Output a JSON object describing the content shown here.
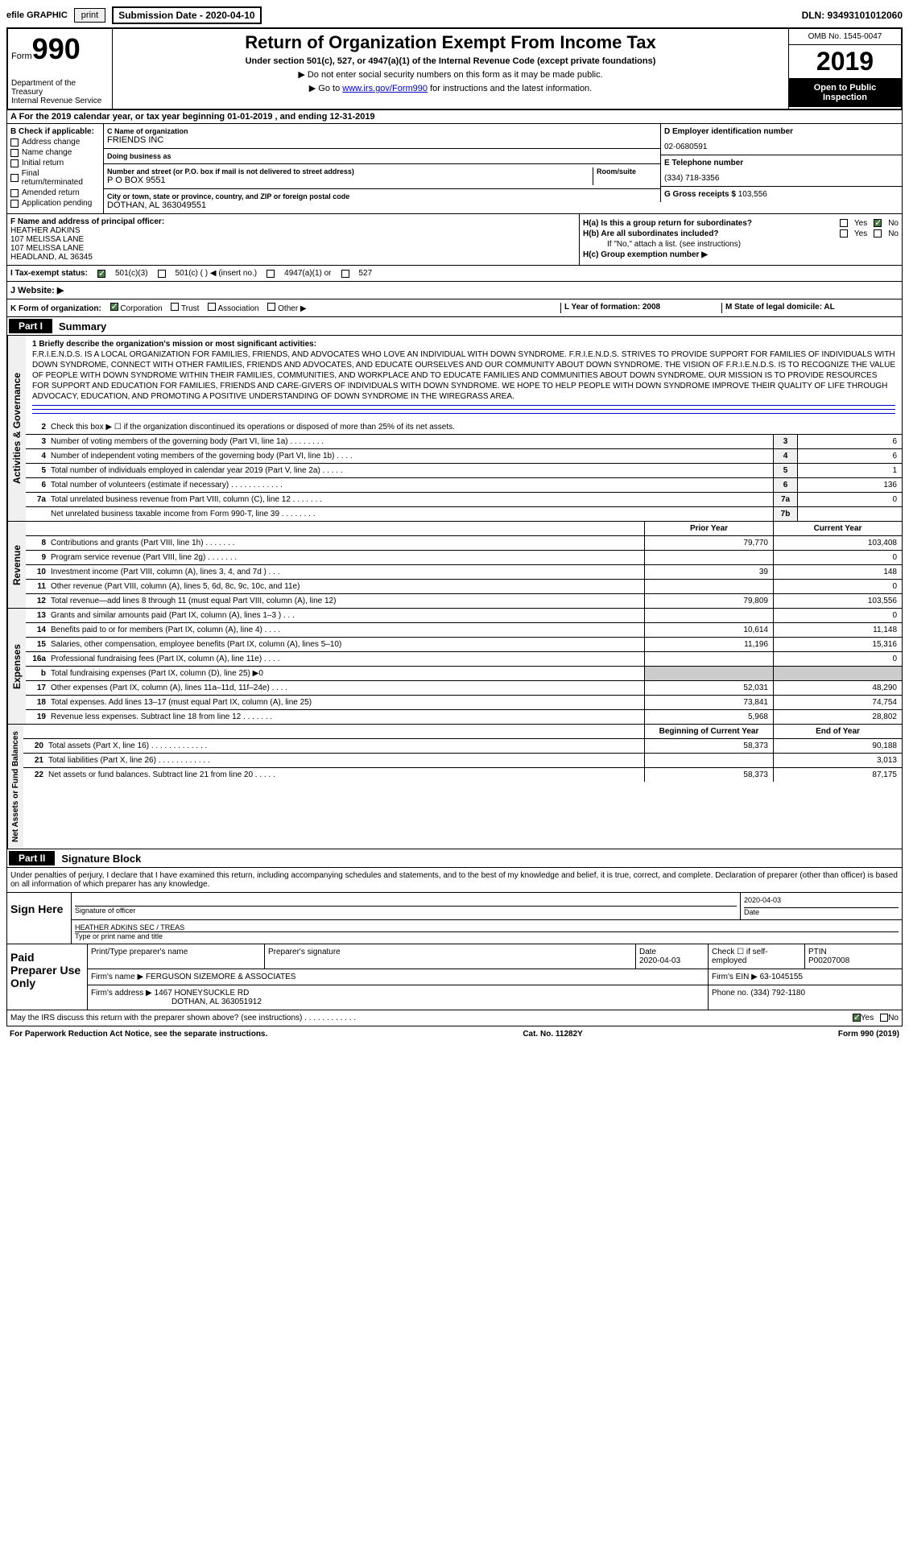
{
  "topbar": {
    "efile": "efile GRAPHIC",
    "print": "print",
    "submission": "Submission Date - 2020-04-10",
    "dln": "DLN: 93493101012060"
  },
  "header": {
    "form_prefix": "Form",
    "form_num": "990",
    "dept": "Department of the Treasury\nInternal Revenue Service",
    "title": "Return of Organization Exempt From Income Tax",
    "subtitle": "Under section 501(c), 527, or 4947(a)(1) of the Internal Revenue Code (except private foundations)",
    "instr1": "▶ Do not enter social security numbers on this form as it may be made public.",
    "instr2_prefix": "▶ Go to ",
    "instr2_link": "www.irs.gov/Form990",
    "instr2_suffix": " for instructions and the latest information.",
    "omb": "OMB No. 1545-0047",
    "year": "2019",
    "public": "Open to Public Inspection"
  },
  "row_a": "A For the 2019 calendar year, or tax year beginning 01-01-2019   , and ending 12-31-2019",
  "block_b": {
    "label": "B Check if applicable:",
    "items": [
      "Address change",
      "Name change",
      "Initial return",
      "Final return/terminated",
      "Amended return",
      "Application pending"
    ]
  },
  "block_c": {
    "name_label": "C Name of organization",
    "name": "FRIENDS INC",
    "dba_label": "Doing business as",
    "dba": "",
    "addr_label": "Number and street (or P.O. box if mail is not delivered to street address)",
    "room_label": "Room/suite",
    "addr": "P O BOX 9551",
    "city_label": "City or town, state or province, country, and ZIP or foreign postal code",
    "city": "DOTHAN, AL  363049551"
  },
  "block_d": {
    "label": "D Employer identification number",
    "value": "02-0680591"
  },
  "block_e": {
    "label": "E Telephone number",
    "value": "(334) 718-3356"
  },
  "block_g": {
    "label": "G Gross receipts $",
    "value": "103,556"
  },
  "block_f": {
    "label": "F Name and address of principal officer:",
    "name": "HEATHER ADKINS",
    "addr1": "107 MELISSA LANE",
    "addr2": "107 MELISSA LANE",
    "city": "HEADLAND, AL  36345"
  },
  "block_h": {
    "ha": "H(a)  Is this a group return for subordinates?",
    "hb": "H(b)  Are all subordinates included?",
    "hb_note": "If \"No,\" attach a list. (see instructions)",
    "hc": "H(c)  Group exemption number ▶",
    "yes": "Yes",
    "no": "No"
  },
  "row_i": {
    "label": "I  Tax-exempt status:",
    "opt1": "501(c)(3)",
    "opt2": "501(c) (  ) ◀ (insert no.)",
    "opt3": "4947(a)(1) or",
    "opt4": "527"
  },
  "row_j": "J  Website: ▶",
  "row_k": {
    "label": "K Form of organization:",
    "opts": [
      "Corporation",
      "Trust",
      "Association",
      "Other ▶"
    ],
    "l": "L Year of formation: 2008",
    "m": "M State of legal domicile: AL"
  },
  "part1": {
    "header": "Part I",
    "title": "Summary"
  },
  "governance": {
    "label": "Activities & Governance",
    "mission_label": "1  Briefly describe the organization's mission or most significant activities:",
    "mission": "F.R.I.E.N.D.S. IS A LOCAL ORGANIZATION FOR FAMILIES, FRIENDS, AND ADVOCATES WHO LOVE AN INDIVIDUAL WITH DOWN SYNDROME. F.R.I.E.N.D.S. STRIVES TO PROVIDE SUPPORT FOR FAMILIES OF INDIVIDUALS WITH DOWN SYNDROME, CONNECT WITH OTHER FAMILIES, FRIENDS AND ADVOCATES, AND EDUCATE OURSELVES AND OUR COMMUNITY ABOUT DOWN SYNDROME. THE VISION OF F.R.I.E.N.D.S. IS TO RECOGNIZE THE VALUE OF PEOPLE WITH DOWN SYNDROME WITHIN THEIR FAMILIES, COMMUNITIES, AND WORKPLACE AND TO EDUCATE FAMILIES AND COMMUNITIES ABOUT DOWN SYNDROME. OUR MISSION IS TO PROVIDE RESOURCES FOR SUPPORT AND EDUCATION FOR FAMILIES, FRIENDS AND CARE-GIVERS OF INDIVIDUALS WITH DOWN SYNDROME. WE HOPE TO HELP PEOPLE WITH DOWN SYNDROME IMPROVE THEIR QUALITY OF LIFE THROUGH ADVOCACY, EDUCATION, AND PROMOTING A POSITIVE UNDERSTANDING OF DOWN SYNDROME IN THE WIREGRASS AREA.",
    "line2": "Check this box ▶ ☐ if the organization discontinued its operations or disposed of more than 25% of its net assets.",
    "lines": [
      {
        "num": "3",
        "text": "Number of voting members of the governing body (Part VI, line 1a)  .   .   .   .   .   .   .   .",
        "box": "3",
        "val": "6"
      },
      {
        "num": "4",
        "text": "Number of independent voting members of the governing body (Part VI, line 1b)   .   .   .   .",
        "box": "4",
        "val": "6"
      },
      {
        "num": "5",
        "text": "Total number of individuals employed in calendar year 2019 (Part V, line 2a)   .   .   .   .   .",
        "box": "5",
        "val": "1"
      },
      {
        "num": "6",
        "text": "Total number of volunteers (estimate if necessary)   .   .   .   .   .   .   .   .   .   .   .   .",
        "box": "6",
        "val": "136"
      },
      {
        "num": "7a",
        "text": "Total unrelated business revenue from Part VIII, column (C), line 12   .   .   .   .   .   .   .",
        "box": "7a",
        "val": "0"
      },
      {
        "num": "",
        "text": "Net unrelated business taxable income from Form 990-T, line 39   .   .   .   .   .   .   .   .",
        "box": "7b",
        "val": ""
      }
    ]
  },
  "revenue": {
    "label": "Revenue",
    "prior_header": "Prior Year",
    "current_header": "Current Year",
    "lines": [
      {
        "num": "8",
        "text": "Contributions and grants (Part VIII, line 1h)   .   .   .   .   .   .   .",
        "prior": "79,770",
        "current": "103,408"
      },
      {
        "num": "9",
        "text": "Program service revenue (Part VIII, line 2g)   .   .   .   .   .   .   .",
        "prior": "",
        "current": "0"
      },
      {
        "num": "10",
        "text": "Investment income (Part VIII, column (A), lines 3, 4, and 7d )   .   .   .",
        "prior": "39",
        "current": "148"
      },
      {
        "num": "11",
        "text": "Other revenue (Part VIII, column (A), lines 5, 6d, 8c, 9c, 10c, and 11e)",
        "prior": "",
        "current": "0"
      },
      {
        "num": "12",
        "text": "Total revenue—add lines 8 through 11 (must equal Part VIII, column (A), line 12)",
        "prior": "79,809",
        "current": "103,556"
      }
    ]
  },
  "expenses": {
    "label": "Expenses",
    "lines": [
      {
        "num": "13",
        "text": "Grants and similar amounts paid (Part IX, column (A), lines 1–3 )  .   .   .",
        "prior": "",
        "current": "0"
      },
      {
        "num": "14",
        "text": "Benefits paid to or for members (Part IX, column (A), line 4)  .   .   .   .",
        "prior": "10,614",
        "current": "11,148"
      },
      {
        "num": "15",
        "text": "Salaries, other compensation, employee benefits (Part IX, column (A), lines 5–10)",
        "prior": "11,196",
        "current": "15,316"
      },
      {
        "num": "16a",
        "text": "Professional fundraising fees (Part IX, column (A), line 11e)   .   .   .   .",
        "prior": "",
        "current": "0"
      },
      {
        "num": "b",
        "text": "Total fundraising expenses (Part IX, column (D), line 25) ▶0",
        "prior": "shaded",
        "current": "shaded"
      },
      {
        "num": "17",
        "text": "Other expenses (Part IX, column (A), lines 11a–11d, 11f–24e)   .   .   .   .",
        "prior": "52,031",
        "current": "48,290"
      },
      {
        "num": "18",
        "text": "Total expenses. Add lines 13–17 (must equal Part IX, column (A), line 25)",
        "prior": "73,841",
        "current": "74,754"
      },
      {
        "num": "19",
        "text": "Revenue less expenses. Subtract line 18 from line 12  .   .   .   .   .   .   .",
        "prior": "5,968",
        "current": "28,802"
      }
    ]
  },
  "netassets": {
    "label": "Net Assets or Fund Balances",
    "begin_header": "Beginning of Current Year",
    "end_header": "End of Year",
    "lines": [
      {
        "num": "20",
        "text": "Total assets (Part X, line 16)   .   .   .   .   .   .   .   .   .   .   .   .   .",
        "prior": "58,373",
        "current": "90,188"
      },
      {
        "num": "21",
        "text": "Total liabilities (Part X, line 26)   .   .   .   .   .   .   .   .   .   .   .   .",
        "prior": "",
        "current": "3,013"
      },
      {
        "num": "22",
        "text": "Net assets or fund balances. Subtract line 21 from line 20   .   .   .   .   .",
        "prior": "58,373",
        "current": "87,175"
      }
    ]
  },
  "part2": {
    "header": "Part II",
    "title": "Signature Block"
  },
  "signature": {
    "declaration": "Under penalties of perjury, I declare that I have examined this return, including accompanying schedules and statements, and to the best of my knowledge and belief, it is true, correct, and complete. Declaration of preparer (other than officer) is based on all information of which preparer has any knowledge.",
    "sign_here": "Sign Here",
    "sig_label": "Signature of officer",
    "date_label": "Date",
    "date": "2020-04-03",
    "name": "HEATHER ADKINS  SEC / TREAS",
    "name_label": "Type or print name and title"
  },
  "paid": {
    "label": "Paid Preparer Use Only",
    "h_name": "Print/Type preparer's name",
    "h_sig": "Preparer's signature",
    "h_date": "Date",
    "date": "2020-04-03",
    "h_check": "Check ☐ if self-employed",
    "h_ptin": "PTIN",
    "ptin": "P00207008",
    "firm_name_label": "Firm's name      ▶",
    "firm_name": "FERGUSON SIZEMORE & ASSOCIATES",
    "firm_ein_label": "Firm's EIN ▶",
    "firm_ein": "63-1045155",
    "firm_addr_label": "Firm's address ▶",
    "firm_addr": "1467 HONEYSUCKLE RD",
    "firm_city": "DOTHAN, AL  363051912",
    "phone_label": "Phone no.",
    "phone": "(334) 792-1180"
  },
  "footer": {
    "discuss": "May the IRS discuss this return with the preparer shown above? (see instructions)   .   .   .   .   .   .   .   .   .   .   .   .",
    "yes": "Yes",
    "no": "No",
    "paperwork": "For Paperwork Reduction Act Notice, see the separate instructions.",
    "cat": "Cat. No. 11282Y",
    "form": "Form 990 (2019)"
  }
}
